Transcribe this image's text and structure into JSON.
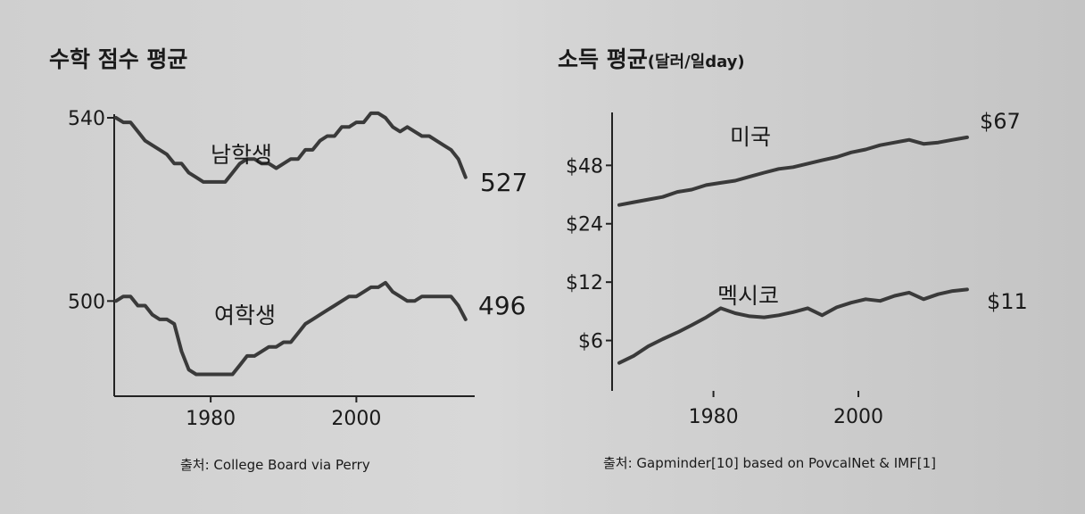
{
  "chart_data": [
    {
      "type": "line",
      "title": "수학 점수 평균",
      "source": "출처: College Board via Perry",
      "xlim": [
        1967,
        2016
      ],
      "ylim": [
        480,
        540
      ],
      "y_ticks": [
        {
          "value": 540,
          "label": "540"
        },
        {
          "value": 500,
          "label": "500"
        }
      ],
      "x_ticks": [
        {
          "value": 1980,
          "label": "1980"
        },
        {
          "value": 2000,
          "label": "2000"
        }
      ],
      "x": [
        1967,
        1968,
        1969,
        1970,
        1971,
        1972,
        1973,
        1974,
        1975,
        1976,
        1977,
        1978,
        1979,
        1980,
        1981,
        1982,
        1983,
        1984,
        1985,
        1986,
        1987,
        1988,
        1989,
        1990,
        1991,
        1992,
        1993,
        1994,
        1995,
        1996,
        1997,
        1998,
        1999,
        2000,
        2001,
        2002,
        2003,
        2004,
        2005,
        2006,
        2007,
        2008,
        2009,
        2010,
        2011,
        2012,
        2013,
        2014,
        2015
      ],
      "series": [
        {
          "name": "남학생",
          "end_label": "527",
          "values": [
            540,
            539,
            539,
            537,
            535,
            534,
            533,
            532,
            530,
            530,
            528,
            527,
            526,
            526,
            526,
            526,
            528,
            530,
            531,
            531,
            530,
            530,
            529,
            530,
            531,
            531,
            533,
            533,
            535,
            536,
            536,
            538,
            538,
            539,
            539,
            541,
            541,
            540,
            538,
            537,
            538,
            537,
            536,
            536,
            535,
            534,
            533,
            531,
            527
          ]
        },
        {
          "name": "여학생",
          "end_label": "496",
          "values": [
            500,
            501,
            501,
            499,
            499,
            497,
            496,
            496,
            495,
            489,
            485,
            484,
            484,
            484,
            484,
            484,
            484,
            486,
            488,
            488,
            489,
            490,
            490,
            491,
            491,
            493,
            495,
            496,
            497,
            498,
            499,
            500,
            501,
            501,
            502,
            503,
            503,
            504,
            502,
            501,
            500,
            500,
            501,
            501,
            501,
            501,
            501,
            499,
            496
          ]
        }
      ]
    },
    {
      "type": "line",
      "title": "소득 평균",
      "title_unit": "(달러/일day)",
      "source": "출처: Gapminder[10] based on PovcalNet & IMF[1]",
      "xlim": [
        1967,
        2016
      ],
      "y_scale": "log",
      "ylim": [
        3.3,
        90
      ],
      "y_ticks": [
        {
          "value": 48,
          "label": "$48"
        },
        {
          "value": 24,
          "label": "$24"
        },
        {
          "value": 12,
          "label": "$12"
        },
        {
          "value": 6,
          "label": "$6"
        }
      ],
      "x_ticks": [
        {
          "value": 1980,
          "label": "1980"
        },
        {
          "value": 2000,
          "label": "2000"
        }
      ],
      "x": [
        1967,
        1969,
        1971,
        1973,
        1975,
        1977,
        1979,
        1981,
        1983,
        1985,
        1987,
        1989,
        1991,
        1993,
        1995,
        1997,
        1999,
        2001,
        2003,
        2005,
        2007,
        2009,
        2011,
        2013,
        2015
      ],
      "series": [
        {
          "name": "미국",
          "end_label": "$67",
          "values": [
            30,
            31,
            32,
            33,
            35,
            36,
            38,
            39,
            40,
            42,
            44,
            46,
            47,
            49,
            51,
            53,
            56,
            58,
            61,
            63,
            65,
            62,
            63,
            65,
            67
          ]
        },
        {
          "name": "멕시코",
          "end_label": "$11",
          "values": [
            4.6,
            5.0,
            5.6,
            6.1,
            6.6,
            7.2,
            7.9,
            8.8,
            8.3,
            8.0,
            7.9,
            8.1,
            8.4,
            8.8,
            8.1,
            8.9,
            9.4,
            9.8,
            9.6,
            10.2,
            10.6,
            9.8,
            10.4,
            10.8,
            11
          ]
        }
      ]
    }
  ]
}
